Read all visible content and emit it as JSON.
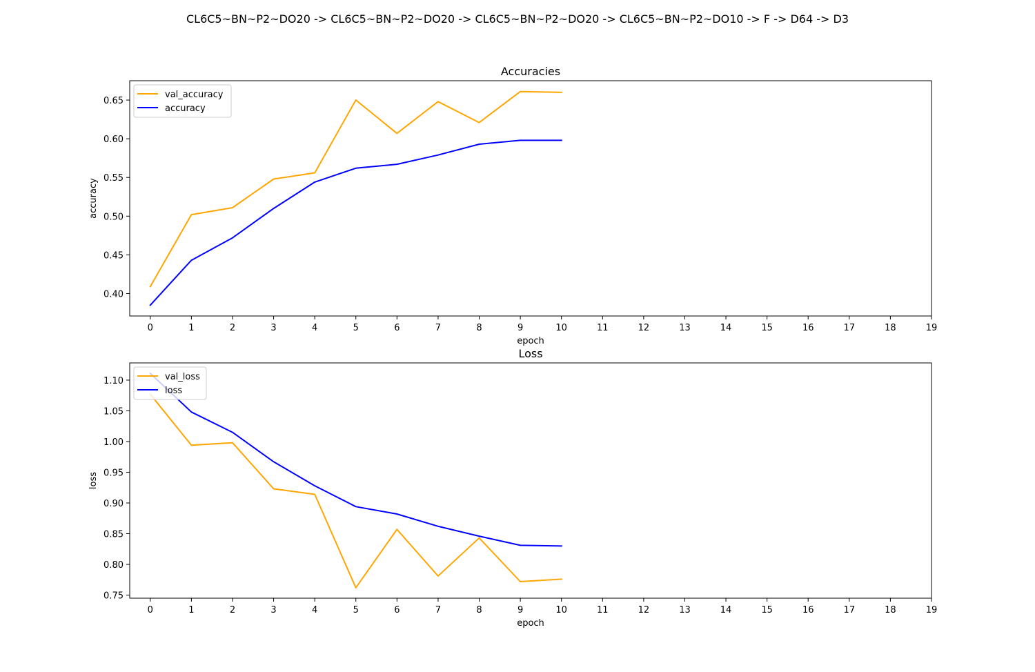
{
  "figure": {
    "suptitle": "CL6C5~BN~P2~DO20 -> CL6C5~BN~P2~DO20 -> CL6C5~BN~P2~DO20 -> CL6C5~BN~P2~DO10 -> F -> D64 -> D3"
  },
  "chart_data": [
    {
      "type": "line",
      "title": "Accuracies",
      "xlabel": "epoch",
      "ylabel": "accuracy",
      "xlim": [
        -0.5,
        19
      ],
      "ylim": [
        0.371,
        0.675
      ],
      "x_ticks": [
        0,
        1,
        2,
        3,
        4,
        5,
        6,
        7,
        8,
        9,
        10,
        11,
        12,
        13,
        14,
        15,
        16,
        17,
        18,
        19
      ],
      "y_ticks": [
        0.4,
        0.45,
        0.5,
        0.55,
        0.6,
        0.65
      ],
      "y_tick_labels": [
        "0.40",
        "0.45",
        "0.50",
        "0.55",
        "0.60",
        "0.65"
      ],
      "legend": "upper left",
      "grid": false,
      "x": [
        0,
        1,
        2,
        3,
        4,
        5,
        6,
        7,
        8,
        9,
        10
      ],
      "series": [
        {
          "name": "val_accuracy",
          "color": "#ffa500",
          "values": [
            0.409,
            0.502,
            0.511,
            0.548,
            0.556,
            0.65,
            0.607,
            0.648,
            0.621,
            0.661,
            0.66
          ]
        },
        {
          "name": "accuracy",
          "color": "#0000ff",
          "values": [
            0.385,
            0.443,
            0.472,
            0.51,
            0.544,
            0.562,
            0.567,
            0.579,
            0.593,
            0.598,
            0.598
          ]
        }
      ]
    },
    {
      "type": "line",
      "title": "Loss",
      "xlabel": "epoch",
      "ylabel": "loss",
      "xlim": [
        -0.5,
        19
      ],
      "ylim": [
        0.745,
        1.128
      ],
      "x_ticks": [
        0,
        1,
        2,
        3,
        4,
        5,
        6,
        7,
        8,
        9,
        10,
        11,
        12,
        13,
        14,
        15,
        16,
        17,
        18,
        19
      ],
      "y_ticks": [
        0.75,
        0.8,
        0.85,
        0.9,
        0.95,
        1.0,
        1.05,
        1.1
      ],
      "y_tick_labels": [
        "0.75",
        "0.80",
        "0.85",
        "0.90",
        "0.95",
        "1.00",
        "1.05",
        "1.10"
      ],
      "legend": "upper left",
      "grid": false,
      "x": [
        0,
        1,
        2,
        3,
        4,
        5,
        6,
        7,
        8,
        9,
        10
      ],
      "series": [
        {
          "name": "val_loss",
          "color": "#ffa500",
          "values": [
            1.077,
            0.994,
            0.998,
            0.923,
            0.914,
            0.762,
            0.857,
            0.781,
            0.843,
            0.772,
            0.776
          ]
        },
        {
          "name": "loss",
          "color": "#0000ff",
          "values": [
            1.111,
            1.048,
            1.015,
            0.967,
            0.928,
            0.894,
            0.882,
            0.862,
            0.846,
            0.831,
            0.83
          ]
        }
      ]
    }
  ]
}
